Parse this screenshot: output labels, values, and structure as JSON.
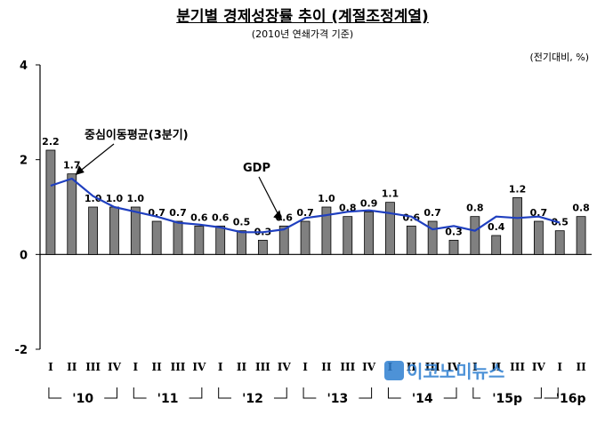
{
  "title": "분기별 경제성장률 추이 (계절조정계열)",
  "subtitle": "(2010년 연쇄가격 기준)",
  "unit": "(전기대비, %)",
  "watermark": "이코노미뉴스",
  "chart_data": {
    "type": "bar",
    "ylim": [
      -2,
      4
    ],
    "yticks": [
      -2,
      0,
      2,
      4
    ],
    "grid": false,
    "bar_color": "#808080",
    "line_color": "#1f3fbf",
    "categories": [
      "I",
      "II",
      "III",
      "IV",
      "I",
      "II",
      "III",
      "IV",
      "I",
      "II",
      "III",
      "IV",
      "I",
      "II",
      "III",
      "IV",
      "I",
      "II",
      "III",
      "IV",
      "I",
      "II",
      "III",
      "IV",
      "I",
      "II"
    ],
    "year_labels": [
      "'10",
      "'11",
      "'12",
      "'13",
      "'14",
      "'15p",
      "'16p"
    ],
    "series": [
      {
        "name": "GDP",
        "type": "bar",
        "values": [
          2.2,
          1.7,
          1.0,
          1.0,
          1.0,
          0.7,
          0.7,
          0.6,
          0.6,
          0.5,
          0.3,
          0.6,
          0.7,
          1.0,
          0.8,
          0.9,
          1.1,
          0.6,
          0.7,
          0.3,
          0.8,
          0.4,
          1.2,
          0.7,
          0.5,
          0.8
        ],
        "labels": [
          "2.2",
          "1.7",
          "1.0",
          "1.0",
          "1.0",
          "0.7",
          "0.7",
          "0.6",
          "0.6",
          "0.5",
          "0.3",
          "0.6",
          "0.7",
          "1.0",
          "0.8",
          "0.9",
          "1.1",
          "0.6",
          "0.7",
          "0.3",
          "0.8",
          "0.4",
          "1.2",
          "0.7",
          "0.5",
          "0.8"
        ]
      },
      {
        "name": "중심이동평균(3분기)",
        "type": "line",
        "values": [
          1.45,
          1.6,
          1.23,
          1.0,
          0.9,
          0.8,
          0.67,
          0.63,
          0.57,
          0.47,
          0.47,
          0.53,
          0.77,
          0.83,
          0.9,
          0.93,
          0.87,
          0.8,
          0.53,
          0.6,
          0.5,
          0.8,
          0.77,
          0.8,
          0.67,
          null
        ]
      }
    ],
    "annotations": [
      {
        "text": "중심이동평균(3분기)",
        "target_index": 1
      },
      {
        "text": "GDP",
        "target_index": 11
      }
    ]
  }
}
